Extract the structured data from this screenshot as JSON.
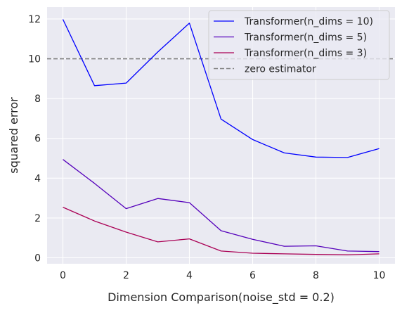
{
  "chart_data": {
    "type": "line",
    "title": "",
    "xlabel": "Dimension Comparison(noise_std = 0.2)",
    "ylabel": "squared error",
    "xlim": [
      -0.5,
      10.5
    ],
    "ylim": [
      -0.3,
      12.6
    ],
    "xticks": [
      0,
      2,
      4,
      6,
      8,
      10
    ],
    "yticks": [
      0,
      2,
      4,
      6,
      8,
      10,
      12
    ],
    "xtick_labels": [
      "0",
      "2",
      "4",
      "6",
      "8",
      "10"
    ],
    "ytick_labels": [
      "0",
      "2",
      "4",
      "6",
      "8",
      "10",
      "12"
    ],
    "grid": true,
    "legend_position": "top-right",
    "x": [
      0,
      1,
      2,
      3,
      4,
      5,
      6,
      7,
      8,
      9,
      10
    ],
    "series": [
      {
        "name": "Transformer(n_dims = 10)",
        "color": "#0000ff",
        "style": "solid",
        "values": [
          11.98,
          8.65,
          8.78,
          10.34,
          11.79,
          6.97,
          5.94,
          5.27,
          5.06,
          5.04,
          5.49
        ]
      },
      {
        "name": "Transformer(n_dims = 5)",
        "color": "#5500bb",
        "style": "solid",
        "values": [
          4.94,
          3.74,
          2.47,
          2.98,
          2.77,
          1.36,
          0.93,
          0.58,
          0.6,
          0.34,
          0.31
        ]
      },
      {
        "name": "Transformer(n_dims = 3)",
        "color": "#aa0055",
        "style": "solid",
        "values": [
          2.54,
          1.85,
          1.29,
          0.8,
          0.95,
          0.34,
          0.23,
          0.2,
          0.17,
          0.15,
          0.2
        ]
      }
    ],
    "reference_lines": [
      {
        "name": "zero estimator",
        "color": "#808080",
        "style": "dashed",
        "y": 10
      }
    ],
    "colors": {
      "plot_background": "#eaeaf2",
      "grid": "#ffffff",
      "text": "#262626"
    }
  }
}
